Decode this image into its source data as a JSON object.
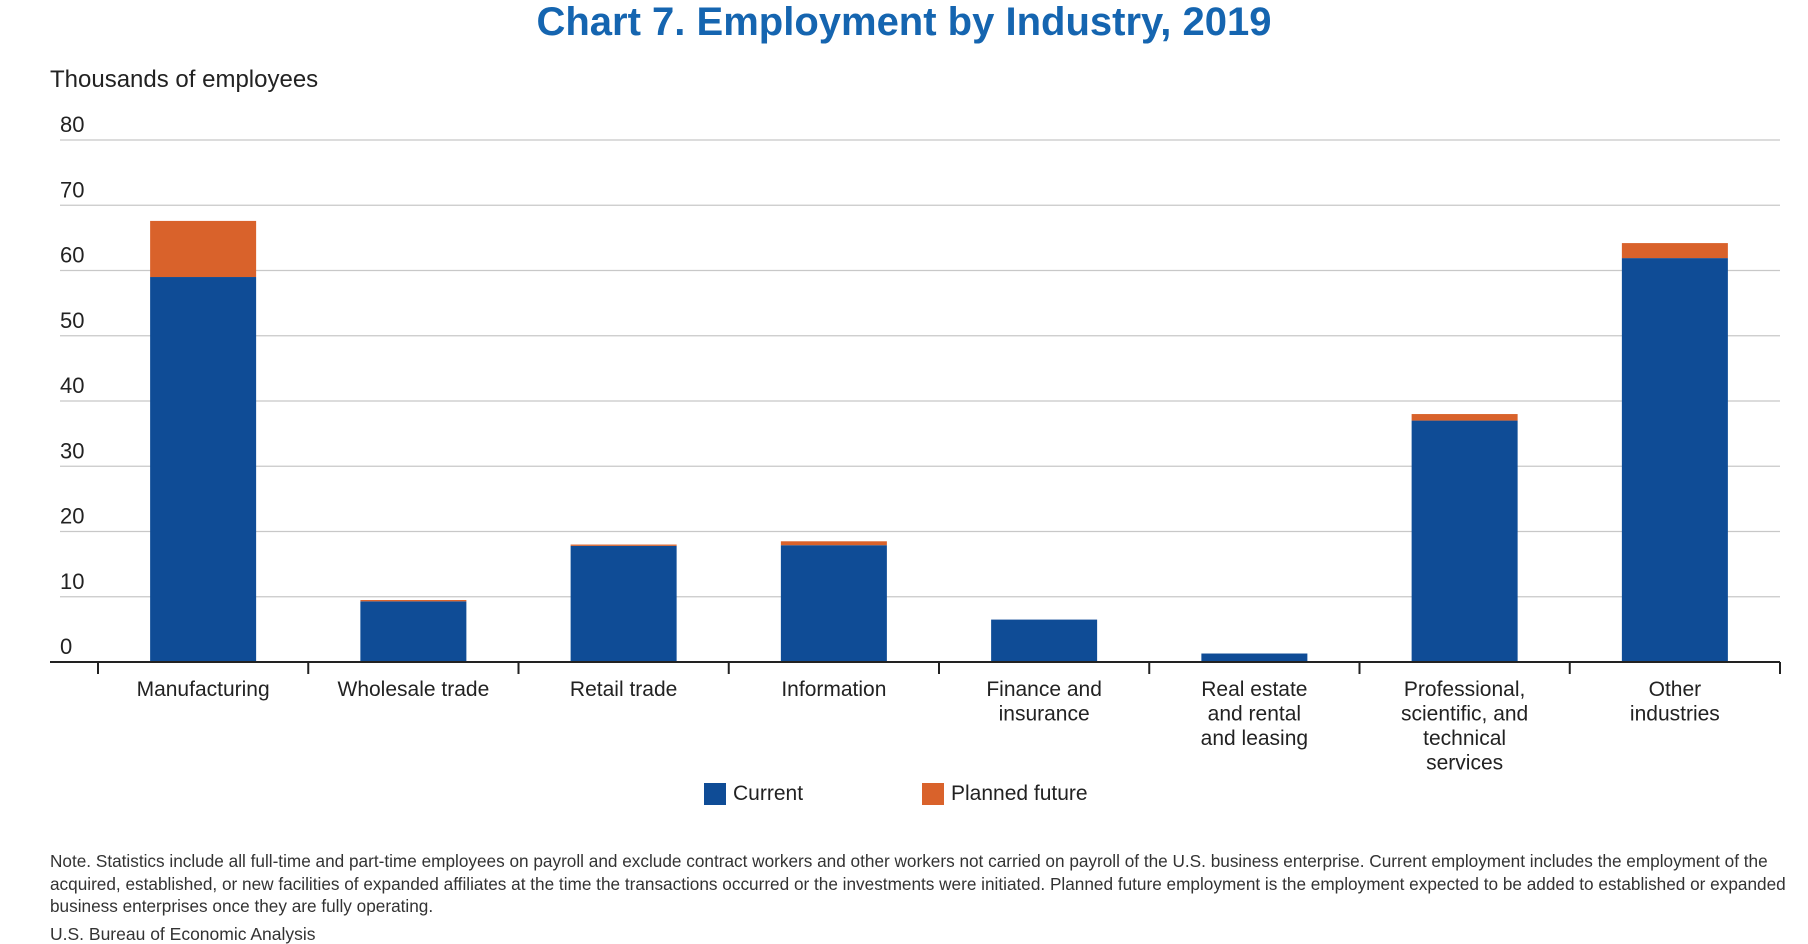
{
  "chart_data": {
    "type": "bar",
    "stacked": true,
    "title": "Chart 7. Employment by Industry, 2019",
    "ylabel": "Thousands of employees",
    "ylim": [
      0,
      80
    ],
    "yticks": [
      0,
      10,
      20,
      30,
      40,
      50,
      60,
      70,
      80
    ],
    "grid": true,
    "legend_position": "bottom",
    "categories": [
      [
        "Manufacturing"
      ],
      [
        "Wholesale trade"
      ],
      [
        "Retail trade"
      ],
      [
        "Information"
      ],
      [
        "Finance and",
        "insurance"
      ],
      [
        "Real estate",
        "and rental",
        "and leasing"
      ],
      [
        "Professional,",
        "scientific, and",
        "technical",
        "services"
      ],
      [
        "Other",
        "industries"
      ]
    ],
    "series": [
      {
        "name": "Current",
        "color": "#0f4c96",
        "values": [
          59.0,
          9.3,
          17.8,
          17.9,
          6.5,
          1.3,
          37.0,
          61.9
        ]
      },
      {
        "name": "Planned future",
        "color": "#d9622b",
        "values": [
          8.6,
          0.2,
          0.2,
          0.6,
          0.0,
          0.0,
          1.0,
          2.3
        ]
      }
    ]
  },
  "note": "Note. Statistics include all full-time and part-time employees on payroll and exclude contract workers and other workers not carried on payroll of the U.S. business enterprise. Current employment includes the employment of the acquired, established, or new facilities of expanded affiliates at the time the transactions occurred or the investments were initiated. Planned future employment is the employment expected to be added to established or expanded business enterprises once they are fully operating.",
  "source": "U.S. Bureau of Economic Analysis"
}
